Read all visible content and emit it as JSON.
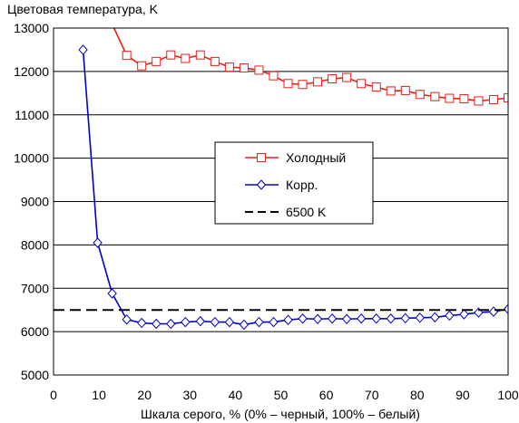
{
  "chart_data": {
    "type": "line",
    "title": "Цветовая температура, K",
    "xlabel": "Шкала серого, % (0% – черный, 100% – белый)",
    "ylabel": "",
    "xlim": [
      0,
      100
    ],
    "ylim": [
      5000,
      13000
    ],
    "xticks": [
      0,
      10,
      20,
      30,
      40,
      50,
      60,
      70,
      80,
      90,
      100
    ],
    "yticks": [
      5000,
      6000,
      7000,
      8000,
      9000,
      10000,
      11000,
      12000,
      13000
    ],
    "grid": "horizontal",
    "legend_position": "center-right",
    "series": [
      {
        "name": "Холодный",
        "color": "#e8201a",
        "marker": "square",
        "x": [
          13.3,
          16.1,
          19.4,
          22.6,
          25.8,
          29.0,
          32.3,
          35.5,
          38.7,
          41.9,
          45.2,
          48.4,
          51.6,
          54.8,
          58.1,
          61.3,
          64.5,
          67.7,
          71.0,
          74.2,
          77.4,
          80.6,
          83.9,
          87.1,
          90.3,
          93.5,
          96.8,
          100
        ],
        "y": [
          13000,
          12370,
          12130,
          12230,
          12380,
          12300,
          12380,
          12230,
          12100,
          12080,
          12030,
          11900,
          11720,
          11700,
          11760,
          11830,
          11860,
          11720,
          11640,
          11550,
          11560,
          11470,
          11420,
          11380,
          11370,
          11320,
          11350,
          11390
        ]
      },
      {
        "name": "Корр.",
        "color": "#0000cc",
        "marker": "diamond",
        "x": [
          6.5,
          9.7,
          12.9,
          16.1,
          19.4,
          22.6,
          25.8,
          29.0,
          32.3,
          35.5,
          38.7,
          41.9,
          45.2,
          48.4,
          51.6,
          54.8,
          58.1,
          61.3,
          64.5,
          67.7,
          71.0,
          74.2,
          77.4,
          80.6,
          83.9,
          87.1,
          90.3,
          93.5,
          96.8,
          100
        ],
        "y": [
          12500,
          8050,
          6880,
          6280,
          6200,
          6180,
          6180,
          6220,
          6240,
          6220,
          6220,
          6160,
          6220,
          6220,
          6270,
          6300,
          6290,
          6300,
          6290,
          6300,
          6300,
          6300,
          6310,
          6320,
          6330,
          6370,
          6400,
          6440,
          6460,
          6520
        ]
      },
      {
        "name": "6500 K",
        "color": "#000000",
        "style": "dashed",
        "x": [
          0,
          100
        ],
        "y": [
          6500,
          6500
        ]
      }
    ]
  }
}
